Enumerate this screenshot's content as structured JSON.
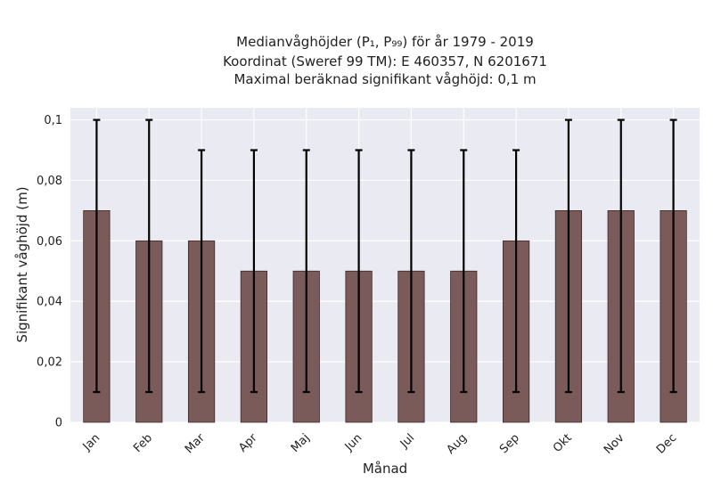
{
  "chart_data": {
    "type": "bar",
    "title_lines": [
      "Medianvåghöjder (P₁, P₉₉) för år 1979 - 2019",
      "Koordinat (Sweref 99 TM): E 460357, N 6201671",
      "Maximal beräknad signifikant våghöjd: 0,1 m"
    ],
    "xlabel": "Månad",
    "ylabel": "Signifikant våghöjd (m)",
    "categories": [
      "Jan",
      "Feb",
      "Mar",
      "Apr",
      "Maj",
      "Jun",
      "Jul",
      "Aug",
      "Sep",
      "Okt",
      "Nov",
      "Dec"
    ],
    "values": [
      0.07,
      0.06,
      0.06,
      0.05,
      0.05,
      0.05,
      0.05,
      0.05,
      0.06,
      0.07,
      0.07,
      0.07
    ],
    "error_low": [
      0.01,
      0.01,
      0.01,
      0.01,
      0.01,
      0.01,
      0.01,
      0.01,
      0.01,
      0.01,
      0.01,
      0.01
    ],
    "error_high": [
      0.1,
      0.1,
      0.09,
      0.09,
      0.09,
      0.09,
      0.09,
      0.09,
      0.09,
      0.1,
      0.1,
      0.1
    ],
    "ylim": [
      0,
      0.104
    ],
    "yticks": [
      0,
      0.02,
      0.04,
      0.06,
      0.08,
      0.1
    ],
    "ytick_labels": [
      "0",
      "0,02",
      "0,04",
      "0,06",
      "0,08",
      "0,1"
    ],
    "grid": true,
    "colors": {
      "bar": "#7b5a5a",
      "bar_edge": "#3a2a2a",
      "error": "#000000",
      "plot_bg": "#eaeaf2",
      "grid": "#ffffff"
    }
  }
}
